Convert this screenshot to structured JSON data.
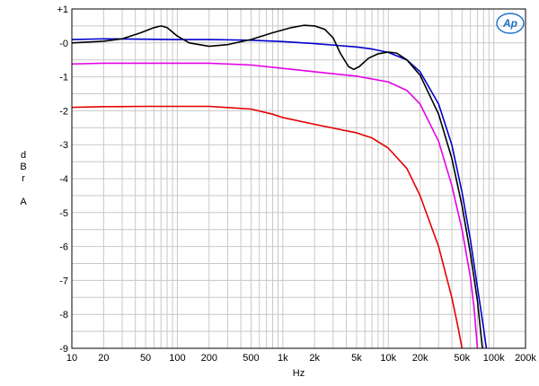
{
  "chart_data": {
    "type": "line",
    "title": "",
    "xlabel": "Hz",
    "ylabel": [
      "d",
      "B",
      "r",
      "",
      "A"
    ],
    "x_scale": "log",
    "xlim": [
      10,
      200000
    ],
    "ylim": [
      -9,
      1
    ],
    "grid": true,
    "x_ticks": [
      {
        "value": 10,
        "label": "10"
      },
      {
        "value": 20,
        "label": "20"
      },
      {
        "value": 50,
        "label": "50"
      },
      {
        "value": 100,
        "label": "100"
      },
      {
        "value": 200,
        "label": "200"
      },
      {
        "value": 500,
        "label": "500"
      },
      {
        "value": 1000,
        "label": "1k"
      },
      {
        "value": 2000,
        "label": "2k"
      },
      {
        "value": 5000,
        "label": "5k"
      },
      {
        "value": 10000,
        "label": "10k"
      },
      {
        "value": 20000,
        "label": "20k"
      },
      {
        "value": 50000,
        "label": "50k"
      },
      {
        "value": 100000,
        "label": "100k"
      },
      {
        "value": 200000,
        "label": "200k"
      }
    ],
    "y_ticks": [
      {
        "value": 1,
        "label": "+1"
      },
      {
        "value": 0,
        "label": "-0"
      },
      {
        "value": -1,
        "label": "-1"
      },
      {
        "value": -2,
        "label": "-2"
      },
      {
        "value": -3,
        "label": "-3"
      },
      {
        "value": -4,
        "label": "-4"
      },
      {
        "value": -5,
        "label": "-5"
      },
      {
        "value": -6,
        "label": "-6"
      },
      {
        "value": -7,
        "label": "-7"
      },
      {
        "value": -8,
        "label": "-8"
      },
      {
        "value": -9,
        "label": "-9"
      }
    ],
    "series": [
      {
        "color": "#0000cc",
        "points": [
          [
            10,
            0.1
          ],
          [
            20,
            0.12
          ],
          [
            50,
            0.11
          ],
          [
            100,
            0.1
          ],
          [
            200,
            0.1
          ],
          [
            500,
            0.08
          ],
          [
            1000,
            0.04
          ],
          [
            2000,
            -0.02
          ],
          [
            5000,
            -0.12
          ],
          [
            7000,
            -0.18
          ],
          [
            10000,
            -0.28
          ],
          [
            15000,
            -0.5
          ],
          [
            20000,
            -0.85
          ],
          [
            30000,
            -1.8
          ],
          [
            40000,
            -3.0
          ],
          [
            50000,
            -4.4
          ],
          [
            60000,
            -5.8
          ],
          [
            70000,
            -7.2
          ],
          [
            80000,
            -8.4
          ],
          [
            85000,
            -9.0
          ]
        ]
      },
      {
        "color": "#000000",
        "points": [
          [
            10,
            0.0
          ],
          [
            20,
            0.05
          ],
          [
            30,
            0.12
          ],
          [
            45,
            0.3
          ],
          [
            60,
            0.45
          ],
          [
            70,
            0.5
          ],
          [
            80,
            0.45
          ],
          [
            100,
            0.2
          ],
          [
            130,
            0.0
          ],
          [
            200,
            -0.1
          ],
          [
            300,
            -0.05
          ],
          [
            500,
            0.1
          ],
          [
            800,
            0.3
          ],
          [
            1200,
            0.45
          ],
          [
            1600,
            0.52
          ],
          [
            2000,
            0.5
          ],
          [
            2500,
            0.4
          ],
          [
            3000,
            0.15
          ],
          [
            3500,
            -0.3
          ],
          [
            4200,
            -0.7
          ],
          [
            4700,
            -0.78
          ],
          [
            5300,
            -0.7
          ],
          [
            6500,
            -0.45
          ],
          [
            8000,
            -0.32
          ],
          [
            10000,
            -0.27
          ],
          [
            12000,
            -0.3
          ],
          [
            15000,
            -0.5
          ],
          [
            20000,
            -0.95
          ],
          [
            30000,
            -2.1
          ],
          [
            40000,
            -3.4
          ],
          [
            50000,
            -4.8
          ],
          [
            60000,
            -6.2
          ],
          [
            70000,
            -7.6
          ],
          [
            78000,
            -9.0
          ]
        ]
      },
      {
        "color": "#e600e6",
        "points": [
          [
            10,
            -0.62
          ],
          [
            20,
            -0.6
          ],
          [
            50,
            -0.6
          ],
          [
            100,
            -0.6
          ],
          [
            200,
            -0.6
          ],
          [
            500,
            -0.65
          ],
          [
            1000,
            -0.75
          ],
          [
            2000,
            -0.85
          ],
          [
            5000,
            -0.98
          ],
          [
            10000,
            -1.15
          ],
          [
            15000,
            -1.4
          ],
          [
            20000,
            -1.8
          ],
          [
            30000,
            -2.9
          ],
          [
            40000,
            -4.2
          ],
          [
            50000,
            -5.5
          ],
          [
            60000,
            -6.9
          ],
          [
            65000,
            -7.8
          ],
          [
            70000,
            -9.0
          ]
        ]
      },
      {
        "color": "#e60000",
        "points": [
          [
            10,
            -1.9
          ],
          [
            20,
            -1.88
          ],
          [
            50,
            -1.87
          ],
          [
            100,
            -1.87
          ],
          [
            200,
            -1.87
          ],
          [
            500,
            -1.95
          ],
          [
            800,
            -2.1
          ],
          [
            1000,
            -2.2
          ],
          [
            2000,
            -2.4
          ],
          [
            5000,
            -2.65
          ],
          [
            7000,
            -2.8
          ],
          [
            10000,
            -3.1
          ],
          [
            15000,
            -3.7
          ],
          [
            20000,
            -4.5
          ],
          [
            30000,
            -6.0
          ],
          [
            40000,
            -7.5
          ],
          [
            46000,
            -8.4
          ],
          [
            50000,
            -9.0
          ]
        ]
      }
    ]
  },
  "logo": {
    "text": "Ap"
  }
}
